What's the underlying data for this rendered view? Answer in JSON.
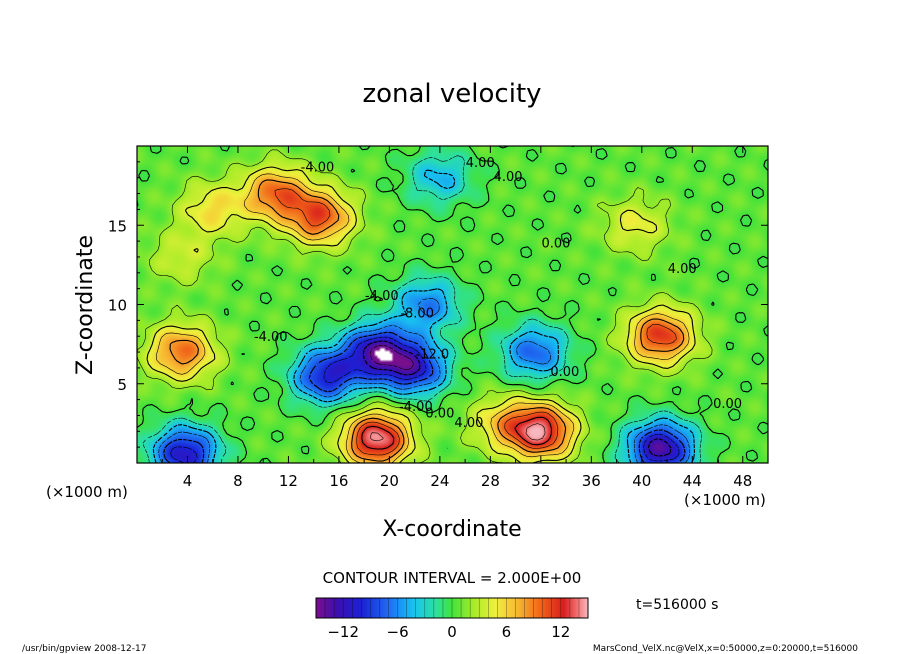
{
  "chart_data": {
    "type": "heatmap",
    "title": "zonal velocity",
    "xlabel": "X-coordinate",
    "ylabel": "Z-coordinate",
    "x_unit_left": "(×1000 m)",
    "x_unit_right": "(×1000 m)",
    "xlim": [
      0,
      50
    ],
    "ylim": [
      0,
      20
    ],
    "x_ticks": [
      4,
      8,
      12,
      16,
      20,
      24,
      28,
      32,
      36,
      40,
      44,
      48
    ],
    "y_ticks": [
      5,
      10,
      15
    ],
    "contour_interval_text": "CONTOUR INTERVAL = 2.000E+00",
    "time_text": "t=516000 s",
    "colorbar": {
      "min": -15,
      "max": 15,
      "ticks": [
        -12,
        -6,
        0,
        6,
        12
      ]
    },
    "contour_labels": [
      {
        "text": "4.00",
        "x": 27.2,
        "y": 19.0
      },
      {
        "text": "4.00",
        "x": 29.4,
        "y": 18.1
      },
      {
        "text": "-4.00",
        "x": 14.3,
        "y": 18.7
      },
      {
        "text": "0.00",
        "x": 33.2,
        "y": 13.9
      },
      {
        "text": "-4.00",
        "x": 19.4,
        "y": 10.6
      },
      {
        "text": "-8.00",
        "x": 22.2,
        "y": 9.5
      },
      {
        "text": "-4.00",
        "x": 10.6,
        "y": 8.0
      },
      {
        "text": "-12.0",
        "x": 23.4,
        "y": 6.9
      },
      {
        "text": "-4.00",
        "x": 22.1,
        "y": 3.6
      },
      {
        "text": "0.00",
        "x": 24.0,
        "y": 3.2
      },
      {
        "text": "4.00",
        "x": 26.3,
        "y": 2.6
      },
      {
        "text": "0.00",
        "x": 33.9,
        "y": 5.8
      },
      {
        "text": "4.00",
        "x": 43.2,
        "y": 12.3
      },
      {
        "text": "0.00",
        "x": 46.8,
        "y": 3.8
      }
    ],
    "features": [
      {
        "x": 24,
        "y": 18,
        "value": -5
      },
      {
        "x": 19,
        "y": 7,
        "value": -13
      },
      {
        "x": 22,
        "y": 6,
        "value": -11
      },
      {
        "x": 15,
        "y": 5.5,
        "value": -11
      },
      {
        "x": 23,
        "y": 10,
        "value": -7
      },
      {
        "x": 31.5,
        "y": 7,
        "value": -8
      },
      {
        "x": 3.8,
        "y": 0.6,
        "value": -12
      },
      {
        "x": 41.5,
        "y": 0.9,
        "value": -14
      },
      {
        "x": 11,
        "y": 17,
        "value": 9
      },
      {
        "x": 14.5,
        "y": 15.5,
        "value": 10
      },
      {
        "x": 3.5,
        "y": 7,
        "value": 9
      },
      {
        "x": 41.5,
        "y": 8,
        "value": 11
      },
      {
        "x": 32,
        "y": 2,
        "value": 13
      },
      {
        "x": 19,
        "y": 1.5,
        "value": 14
      },
      {
        "x": 39.5,
        "y": 15,
        "value": 4
      },
      {
        "x": 29,
        "y": 2.5,
        "value": 5
      },
      {
        "x": 6,
        "y": 16,
        "value": 5
      },
      {
        "x": 3.5,
        "y": 13,
        "value": 3
      }
    ]
  },
  "footer": {
    "left": "/usr/bin/gpview   2008-12-17",
    "right": "MarsCond_VelX.nc@VelX,x=0:50000,z=0:20000,t=516000"
  }
}
